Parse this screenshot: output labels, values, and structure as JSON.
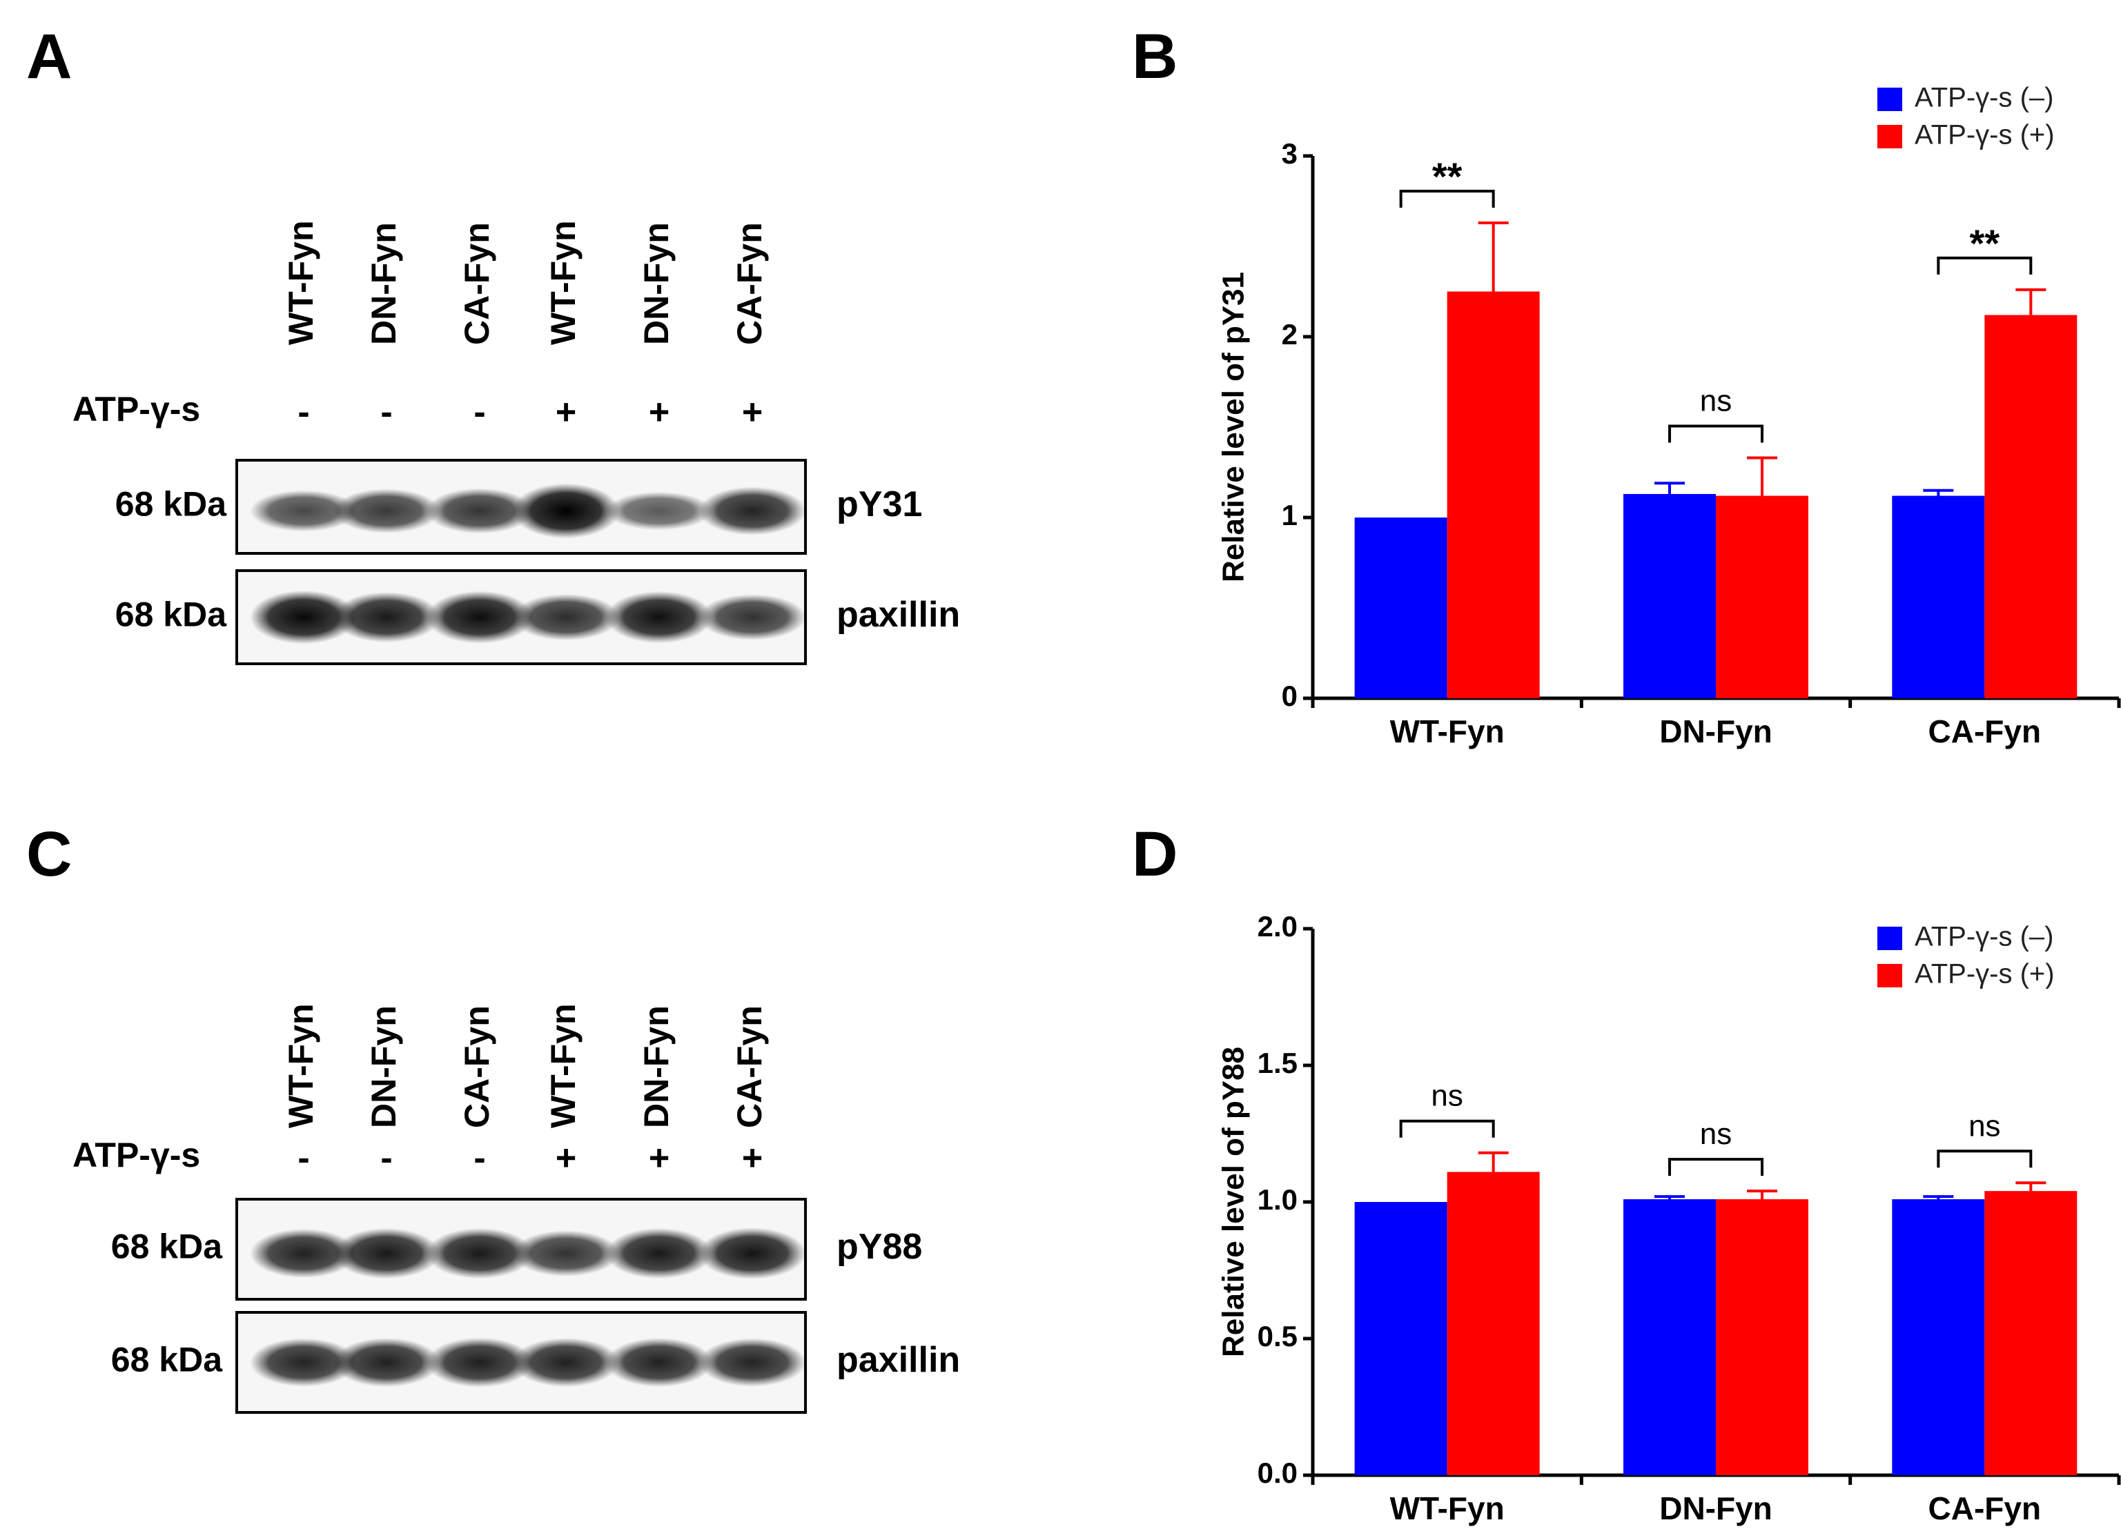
{
  "panels": {
    "a": "A",
    "b": "B",
    "c": "C",
    "d": "D"
  },
  "colors": {
    "minus": "#0000ff",
    "plus": "#ff0000"
  },
  "blots": [
    {
      "lanes": [
        "WT-Fyn",
        "DN-Fyn",
        "CA-Fyn",
        "WT-Fyn",
        "DN-Fyn",
        "CA-Fyn"
      ],
      "treatment_label": "ATP-γ-s",
      "treatment": [
        "-",
        "-",
        "-",
        "+",
        "+",
        "+"
      ],
      "rows": [
        {
          "marker": "68 kDa",
          "label": "pY31",
          "intensity": [
            0.55,
            0.65,
            0.68,
            1.0,
            0.45,
            0.78
          ]
        },
        {
          "marker": "68 kDa",
          "label": "paxillin",
          "intensity": [
            0.95,
            0.85,
            0.92,
            0.72,
            0.9,
            0.7
          ]
        }
      ]
    },
    {
      "lanes": [
        "WT-Fyn",
        "DN-Fyn",
        "CA-Fyn",
        "WT-Fyn",
        "DN-Fyn",
        "CA-Fyn"
      ],
      "treatment_label": "ATP-γ-s",
      "treatment": [
        "-",
        "-",
        "-",
        "+",
        "+",
        "+"
      ],
      "rows": [
        {
          "marker": "68 kDa",
          "label": "pY88",
          "intensity": [
            0.8,
            0.85,
            0.85,
            0.7,
            0.85,
            0.88
          ]
        },
        {
          "marker": "68 kDa",
          "label": "paxillin",
          "intensity": [
            0.78,
            0.8,
            0.82,
            0.8,
            0.8,
            0.78
          ]
        }
      ]
    }
  ],
  "chart_data": [
    {
      "type": "bar",
      "title": "",
      "xlabel": "",
      "ylabel": "Relative level of pY31",
      "ylim": [
        0,
        3
      ],
      "yticks": [
        "0",
        "1",
        "2",
        "3"
      ],
      "yticks_values": [
        0,
        1,
        2,
        3
      ],
      "categories": [
        "WT-Fyn",
        "DN-Fyn",
        "CA-Fyn"
      ],
      "series": [
        {
          "name": "ATP-γ-s (–)",
          "values": [
            1.0,
            1.13,
            1.12
          ],
          "errors": [
            0,
            0.06,
            0.03
          ]
        },
        {
          "name": "ATP-γ-s (+)",
          "values": [
            2.25,
            1.12,
            2.12
          ],
          "errors": [
            0.38,
            0.21,
            0.14
          ]
        }
      ],
      "significance": [
        "**",
        "ns",
        "**"
      ],
      "legend": "top-right"
    },
    {
      "type": "bar",
      "title": "",
      "xlabel": "",
      "ylabel": "Relative level of pY88",
      "ylim": [
        0,
        2
      ],
      "yticks": [
        "0.0",
        "0.5",
        "1.0",
        "1.5",
        "2.0"
      ],
      "yticks_values": [
        0,
        0.5,
        1.0,
        1.5,
        2.0
      ],
      "categories": [
        "WT-Fyn",
        "DN-Fyn",
        "CA-Fyn"
      ],
      "series": [
        {
          "name": "ATP-γ-s (–)",
          "values": [
            1.0,
            1.01,
            1.01
          ],
          "errors": [
            0,
            0.01,
            0.01
          ]
        },
        {
          "name": "ATP-γ-s (+)",
          "values": [
            1.11,
            1.01,
            1.04
          ],
          "errors": [
            0.07,
            0.03,
            0.03
          ]
        }
      ],
      "significance": [
        "ns",
        "ns",
        "ns"
      ],
      "legend": "top-right"
    }
  ]
}
